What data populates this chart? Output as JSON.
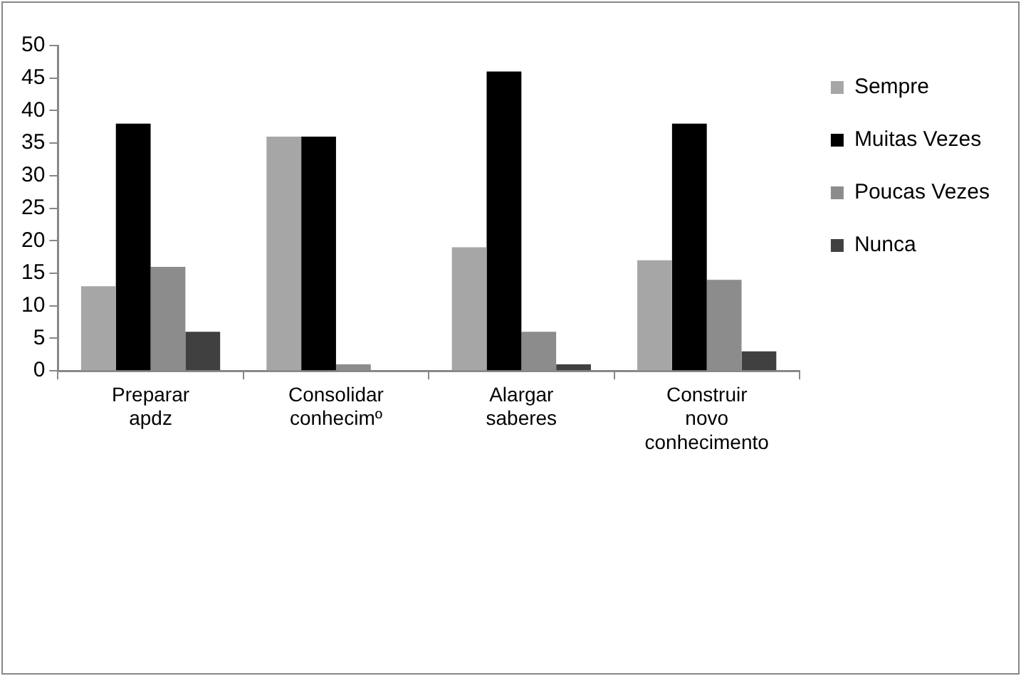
{
  "chart_data": {
    "type": "bar",
    "categories": [
      "Preparar apdz",
      "Consolidar conhecimº",
      "Alargar saberes",
      "Construir novo conhecimento"
    ],
    "series": [
      {
        "name": "Sempre",
        "color": "#a6a6a6",
        "values": [
          13,
          36,
          19,
          17
        ]
      },
      {
        "name": "Muitas Vezes",
        "color": "#000000",
        "values": [
          38,
          36,
          46,
          38
        ]
      },
      {
        "name": "Poucas Vezes",
        "color": "#8c8c8c",
        "values": [
          16,
          1,
          6,
          14
        ]
      },
      {
        "name": "Nunca",
        "color": "#404040",
        "values": [
          6,
          0,
          1,
          3
        ]
      }
    ],
    "ylim": [
      0,
      50
    ],
    "yticks": [
      0,
      5,
      10,
      15,
      20,
      25,
      30,
      35,
      40,
      45,
      50
    ],
    "grid": false,
    "legend": "top right"
  }
}
